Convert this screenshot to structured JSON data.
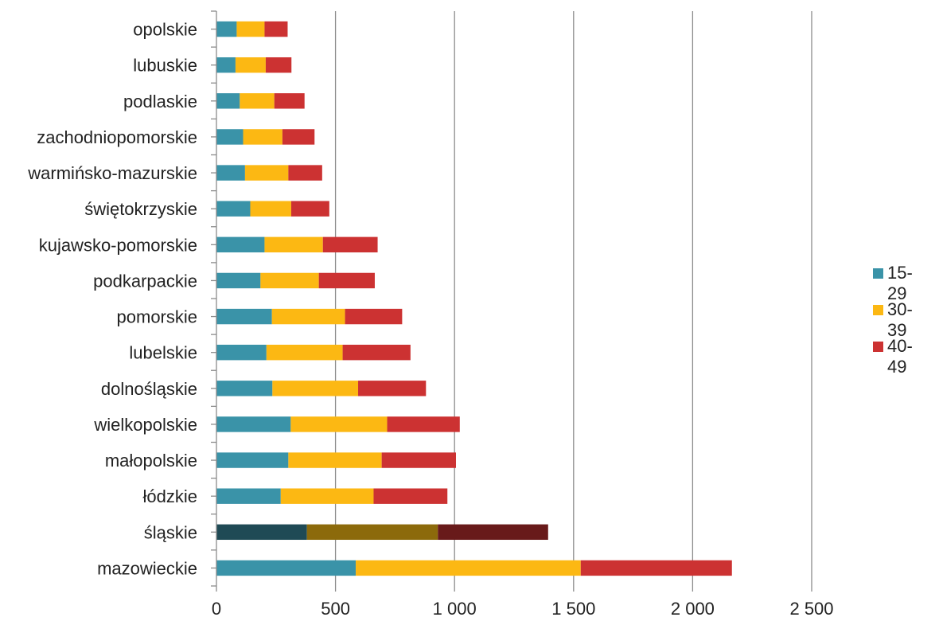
{
  "chart_data": {
    "type": "bar",
    "orientation": "horizontal",
    "stacked": true,
    "categories": [
      "mazowieckie",
      "śląskie",
      "łódzkie",
      "małopolskie",
      "wielkopolskie",
      "dolnośląskie",
      "lubelskie",
      "pomorskie",
      "podkarpackie",
      "kujawsko-pomorskie",
      "świętokrzyskie",
      "warmińsko-mazurskie",
      "zachodniopomorskie",
      "podlaskie",
      "lubuskie",
      "opolskie"
    ],
    "series": [
      {
        "name": "15-29",
        "color": "#3a93a8",
        "values": [
          585,
          380,
          270,
          302,
          312,
          235,
          210,
          233,
          185,
          202,
          142,
          120,
          112,
          98,
          80,
          85
        ]
      },
      {
        "name": "30-39",
        "color": "#fcb813",
        "values": [
          945,
          550,
          390,
          392,
          405,
          360,
          320,
          307,
          245,
          245,
          172,
          182,
          165,
          145,
          127,
          117
        ]
      },
      {
        "name": "40-49",
        "color": "#cc3232",
        "values": [
          635,
          463,
          310,
          312,
          305,
          285,
          285,
          240,
          235,
          230,
          160,
          142,
          135,
          127,
          108,
          97
        ]
      }
    ],
    "highlight": {
      "category": "śląskie",
      "colors": [
        "#1f4a55",
        "#8c6a0b",
        "#681a1a"
      ]
    },
    "xlim": [
      0,
      2500
    ],
    "xticks": [
      0,
      500,
      1000,
      1500,
      2000,
      2500
    ],
    "xtick_labels": [
      "0",
      "500",
      "1 000",
      "1 500",
      "2 000",
      "2 500"
    ],
    "grid": "vertical",
    "legend": "right",
    "title": "",
    "xlabel": "",
    "ylabel": ""
  }
}
